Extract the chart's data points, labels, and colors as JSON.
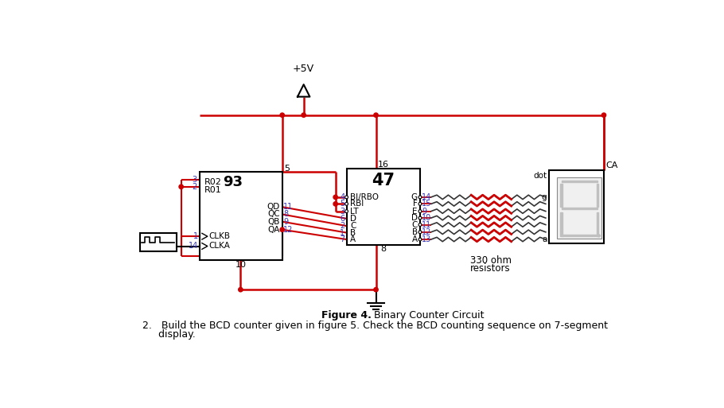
{
  "bg_color": "#ffffff",
  "wire_color": "#cc0000",
  "black_color": "#000000",
  "blue_color": "#3333bb",
  "seg_color": "#c0c0c0",
  "chip93_label": "93",
  "chip93_R02": "R02",
  "chip93_R01": "R01",
  "chip93_outputs": [
    "QD",
    "QC",
    "QB",
    "QA"
  ],
  "chip93_output_pins": [
    "11",
    "8",
    "9",
    "12"
  ],
  "chip93_clk": [
    "CLKB",
    "CLKA"
  ],
  "chip93_clk_pins": [
    "1",
    "14"
  ],
  "chip47_label": "47",
  "chip47_left_labels": [
    "BI/RBO",
    "RBI",
    "LT"
  ],
  "chip47_left_pins": [
    "4",
    "5",
    "3"
  ],
  "chip47_dcba_labels": [
    "D",
    "C",
    "B",
    "A"
  ],
  "chip47_dcba_pins": [
    "6",
    "2",
    "1",
    "7"
  ],
  "chip47_out_labels": [
    "G",
    "F",
    "E",
    "D",
    "C",
    "B",
    "A"
  ],
  "chip47_out_pins": [
    "14",
    "15",
    "9",
    "10",
    "11",
    "12",
    "13"
  ],
  "chip47_pin16": "16",
  "chip47_pin8": "8",
  "display_dot": "dot",
  "display_g": "g",
  "display_a": "a",
  "display_ca": "CA",
  "vcc": "+5V",
  "resistors_line1": "330 ohm",
  "resistors_line2": "resistors",
  "pin5": "5",
  "pin10": "10",
  "figure_bold": "Figure 4.",
  "figure_rest": " Binary Counter Circuit",
  "instr1": "2.   Build the BCD counter given in figure 5. Check the BCD counting sequence on 7-segment",
  "instr2": "     display."
}
